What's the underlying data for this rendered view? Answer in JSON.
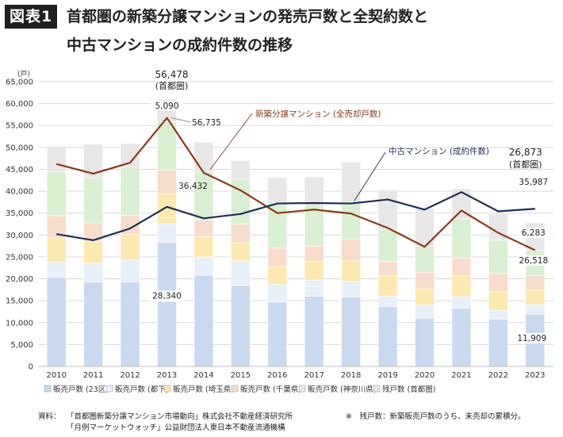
{
  "header": {
    "badge": "図表1",
    "title_line1": "首都圏の新築分譲マンションの発売戸数と全契約数と",
    "title_line2": "中古マンションの成約件数の推移"
  },
  "chart_data": {
    "type": "bar",
    "stacked": true,
    "unit": "(戸)",
    "ylim": [
      0,
      65000
    ],
    "yticks": [
      0,
      5000,
      10000,
      15000,
      20000,
      25000,
      30000,
      35000,
      40000,
      45000,
      50000,
      55000,
      60000,
      65000
    ],
    "ytick_labels": [
      "0",
      "5,000",
      "10,000",
      "15,000",
      "20,000",
      "25,000",
      "30,000",
      "35,000",
      "40,000",
      "45,000",
      "50,000",
      "55,000",
      "60,000",
      "65,000"
    ],
    "categories": [
      "2010",
      "2011",
      "2012",
      "2013",
      "2014",
      "2015",
      "2016",
      "2017",
      "2018",
      "2019",
      "2020",
      "2021",
      "2022",
      "2023"
    ],
    "grid": true,
    "legend_position": "bottom",
    "series": [
      {
        "name": "販売戸数 (23区)",
        "color": "#c9d9f0",
        "values": [
          20300,
          19300,
          19300,
          28340,
          20800,
          18500,
          14700,
          16000,
          15800,
          13700,
          11000,
          13300,
          10800,
          11909
        ]
      },
      {
        "name": "販売戸数 (都下)",
        "color": "#e8f0fa",
        "values": [
          3500,
          4300,
          5000,
          4200,
          4200,
          5600,
          4000,
          3700,
          3600,
          2300,
          3000,
          2600,
          2000,
          2200
        ]
      },
      {
        "name": "販売戸数 (埼玉県)",
        "color": "#fce9b0",
        "values": [
          5600,
          5000,
          5900,
          6800,
          4600,
          4100,
          4100,
          4300,
          4700,
          4800,
          3600,
          4800,
          4300,
          3300
        ]
      },
      {
        "name": "販売戸数 (千葉県)",
        "color": "#f8dccb",
        "values": [
          5000,
          4200,
          4300,
          5500,
          3800,
          4300,
          4200,
          3500,
          5000,
          3200,
          3900,
          4100,
          4200,
          3300
        ]
      },
      {
        "name": "販売戸数 (神奈川県)",
        "color": "#d9efd2",
        "values": [
          10100,
          10300,
          11100,
          11050,
          11000,
          10200,
          10300,
          9400,
          8200,
          7200,
          5900,
          8900,
          7500,
          5809
        ]
      },
      {
        "name": "残戸数 (首都圏)",
        "color": "#e8e6e6",
        "values": [
          5700,
          7600,
          5300,
          5090,
          6800,
          4300,
          5800,
          6300,
          9400,
          9100,
          8700,
          6800,
          6000,
          6283
        ]
      }
    ],
    "lines": [
      {
        "name": "新築分譲マンション (全売却戸数)",
        "color": "#8b3a1b",
        "values": [
          46200,
          44000,
          46500,
          56735,
          44200,
          40200,
          35000,
          35800,
          34900,
          31600,
          27300,
          35600,
          30500,
          26518
        ]
      },
      {
        "name": "中古マンション (成約件数)",
        "color": "#1e2f55",
        "values": [
          30200,
          28800,
          31500,
          36432,
          33800,
          34800,
          37200,
          37300,
          37200,
          38100,
          35800,
          39800,
          35400,
          35987
        ]
      }
    ],
    "data_labels": {
      "total_2013_value": "56,478",
      "total_2013_caption": "(首都圏)",
      "total_2023_value": "26,873",
      "total_2023_caption": "(首都圏)",
      "zan_2013": "5,090",
      "new_2013": "56,735",
      "used_2013": "36,432",
      "ku23_2013": "28,340",
      "used_2023": "35,987",
      "zan_2023": "6,283",
      "new_2023": "26,518",
      "ku23_2023": "11,909"
    },
    "annotations": {
      "new_line_label": "新築分譲マンション (全売却戸数)",
      "used_line_label": "中古マンション (成約件数)"
    }
  },
  "footer": {
    "source_label": "資料：",
    "source_line1": "「首都圏新築分譲マンション市場動向」株式会社不動産経済研究所",
    "source_line2": "「月例マーケットウォッチ」公益財団法人東日本不動産流通機構",
    "note": "※　残戸数：新築販売戸数のうち、未売却の累積分。"
  }
}
